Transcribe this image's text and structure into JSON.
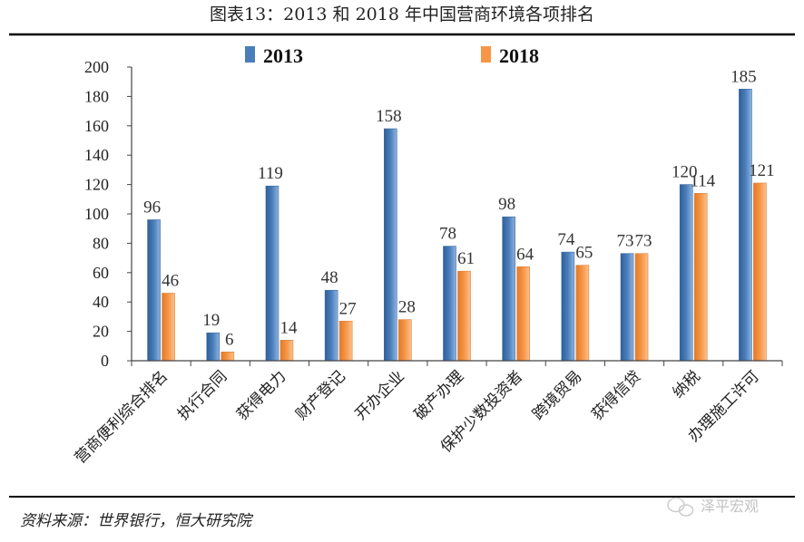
{
  "colors": {
    "series_2013": "#4a7ebb",
    "series_2018": "#f79646",
    "axis": "#444444",
    "border": "#000000"
  },
  "chart_data": {
    "type": "bar",
    "title": "图表13：2013 和 2018 年中国营商环境各项排名",
    "categories": [
      "营商便利综合排名",
      "执行合同",
      "获得电力",
      "财产登记",
      "开办企业",
      "破产办理",
      "保护少数投资者",
      "跨境贸易",
      "获得信贷",
      "纳税",
      "办理施工许可"
    ],
    "series": [
      {
        "name": "2013",
        "values": [
          96,
          19,
          119,
          48,
          158,
          78,
          98,
          74,
          73,
          120,
          185
        ]
      },
      {
        "name": "2018",
        "values": [
          46,
          6,
          14,
          27,
          28,
          61,
          64,
          65,
          73,
          114,
          121
        ]
      }
    ],
    "y_ticks": [
      "0",
      "20",
      "40",
      "60",
      "80",
      "100",
      "120",
      "140",
      "160",
      "180",
      "200"
    ],
    "ylim": [
      0,
      200
    ],
    "legend_position": "top",
    "grid": false
  },
  "source": "资料来源：世界银行，恒大研究院",
  "watermark": {
    "icon": "wechat-icon",
    "text": "泽平宏观"
  }
}
